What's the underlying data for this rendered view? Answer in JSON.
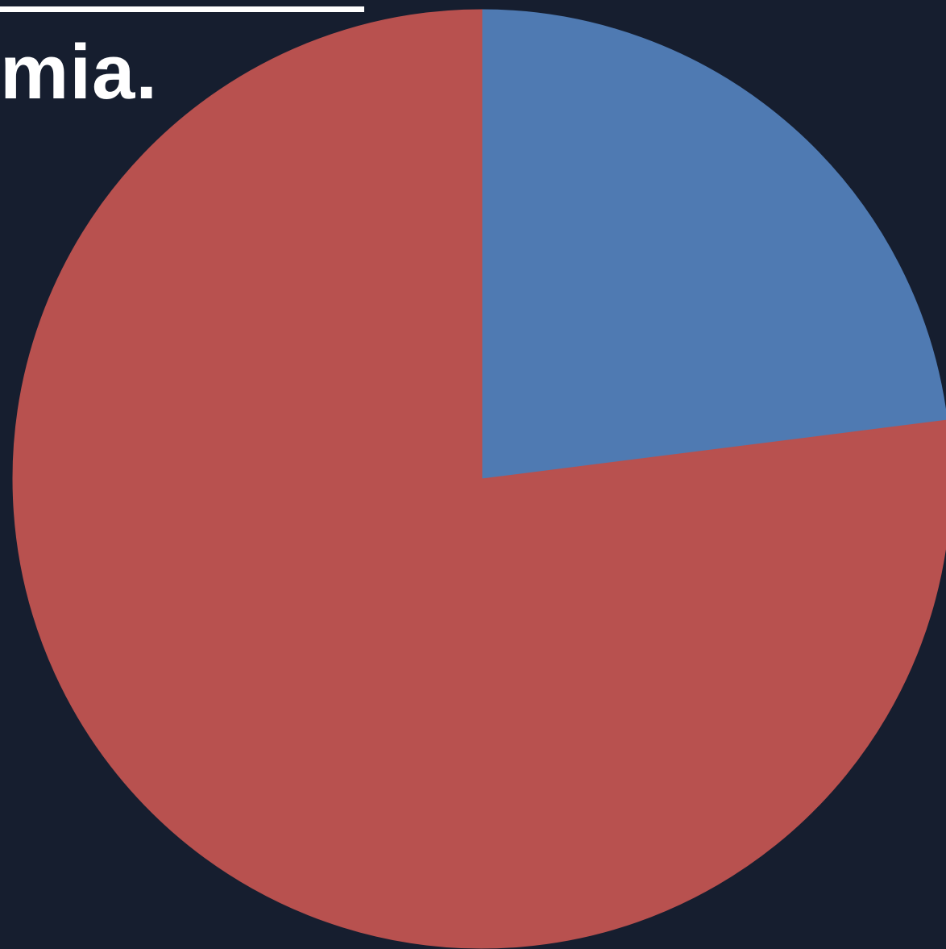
{
  "title_fragment": "mia.",
  "colors": {
    "background": "#161e2f",
    "text": "#ffffff"
  },
  "chart_data": {
    "type": "pie",
    "title": "mia.",
    "legend": false,
    "slices": [
      {
        "color": "#4f7ab2",
        "value": 23
      },
      {
        "color": "#b8514f",
        "value": 77
      }
    ]
  }
}
